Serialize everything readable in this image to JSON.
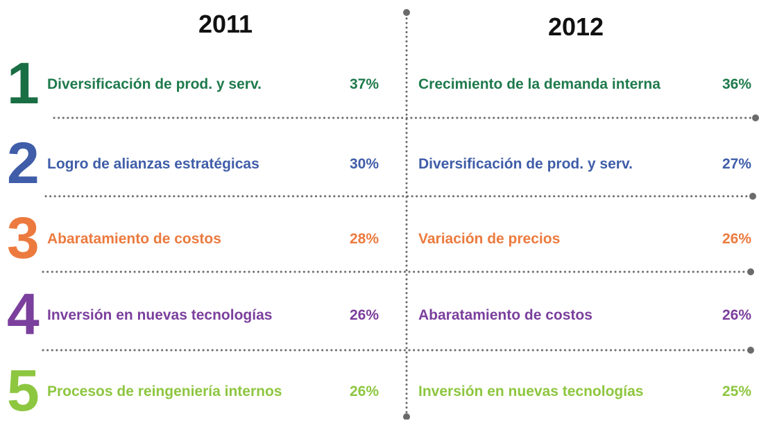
{
  "ranks": [
    "1",
    "2",
    "3",
    "4",
    "5"
  ],
  "columns": [
    {
      "year": "2011",
      "items": [
        {
          "label": "Diversificación de prod. y serv.",
          "value": "37%"
        },
        {
          "label": "Logro de alianzas estratégicas",
          "value": "30%"
        },
        {
          "label": "Abaratamiento de costos",
          "value": "28%"
        },
        {
          "label": "Inversión en nuevas tecnologías",
          "value": "26%"
        },
        {
          "label": "Procesos de reingeniería internos",
          "value": "26%"
        }
      ]
    },
    {
      "year": "2012",
      "items": [
        {
          "label": "Crecimiento de la demanda interna",
          "value": "36%"
        },
        {
          "label": "Diversificación de prod. y serv.",
          "value": "27%"
        },
        {
          "label": "Variación de precios",
          "value": "26%"
        },
        {
          "label": "Abaratamiento de costos",
          "value": "26%"
        },
        {
          "label": "Inversión en nuevas tecnologías",
          "value": "25%"
        }
      ]
    }
  ]
}
